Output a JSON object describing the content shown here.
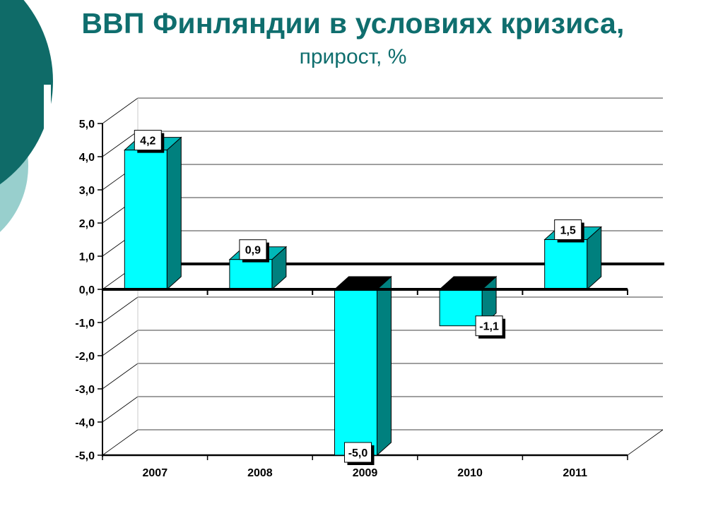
{
  "page": {
    "title": "ВВП Финляндии в условиях кризиса,",
    "subtitle": "прирост, %"
  },
  "colors": {
    "title": "#0f6e6e",
    "deco_dark": "#0f6b68",
    "deco_light": "#98cfcd",
    "bar_front": "#00ffff",
    "bar_side": "#00807e",
    "bar_top": "#00b8b8",
    "zero_line": "#000000"
  },
  "chart_data": {
    "type": "bar",
    "title": "ВВП Финляндии в условиях кризиса,",
    "subtitle": "прирост, %",
    "categories": [
      "2007",
      "2008",
      "2009",
      "2010",
      "2011"
    ],
    "values": [
      4.2,
      0.9,
      -5.0,
      -1.1,
      1.5
    ],
    "value_labels": [
      "4,2",
      "0,9",
      "-5,0",
      "-1,1",
      "1,5"
    ],
    "y_ticks": [
      "-5,0",
      "-4,0",
      "-3,0",
      "-2,0",
      "-1,0",
      "0,0",
      "1,0",
      "2,0",
      "3,0",
      "4,0",
      "5,0"
    ],
    "ylim": [
      -5,
      5
    ],
    "xlabel": "",
    "ylabel": "",
    "grid": true,
    "style": "3d-column"
  }
}
